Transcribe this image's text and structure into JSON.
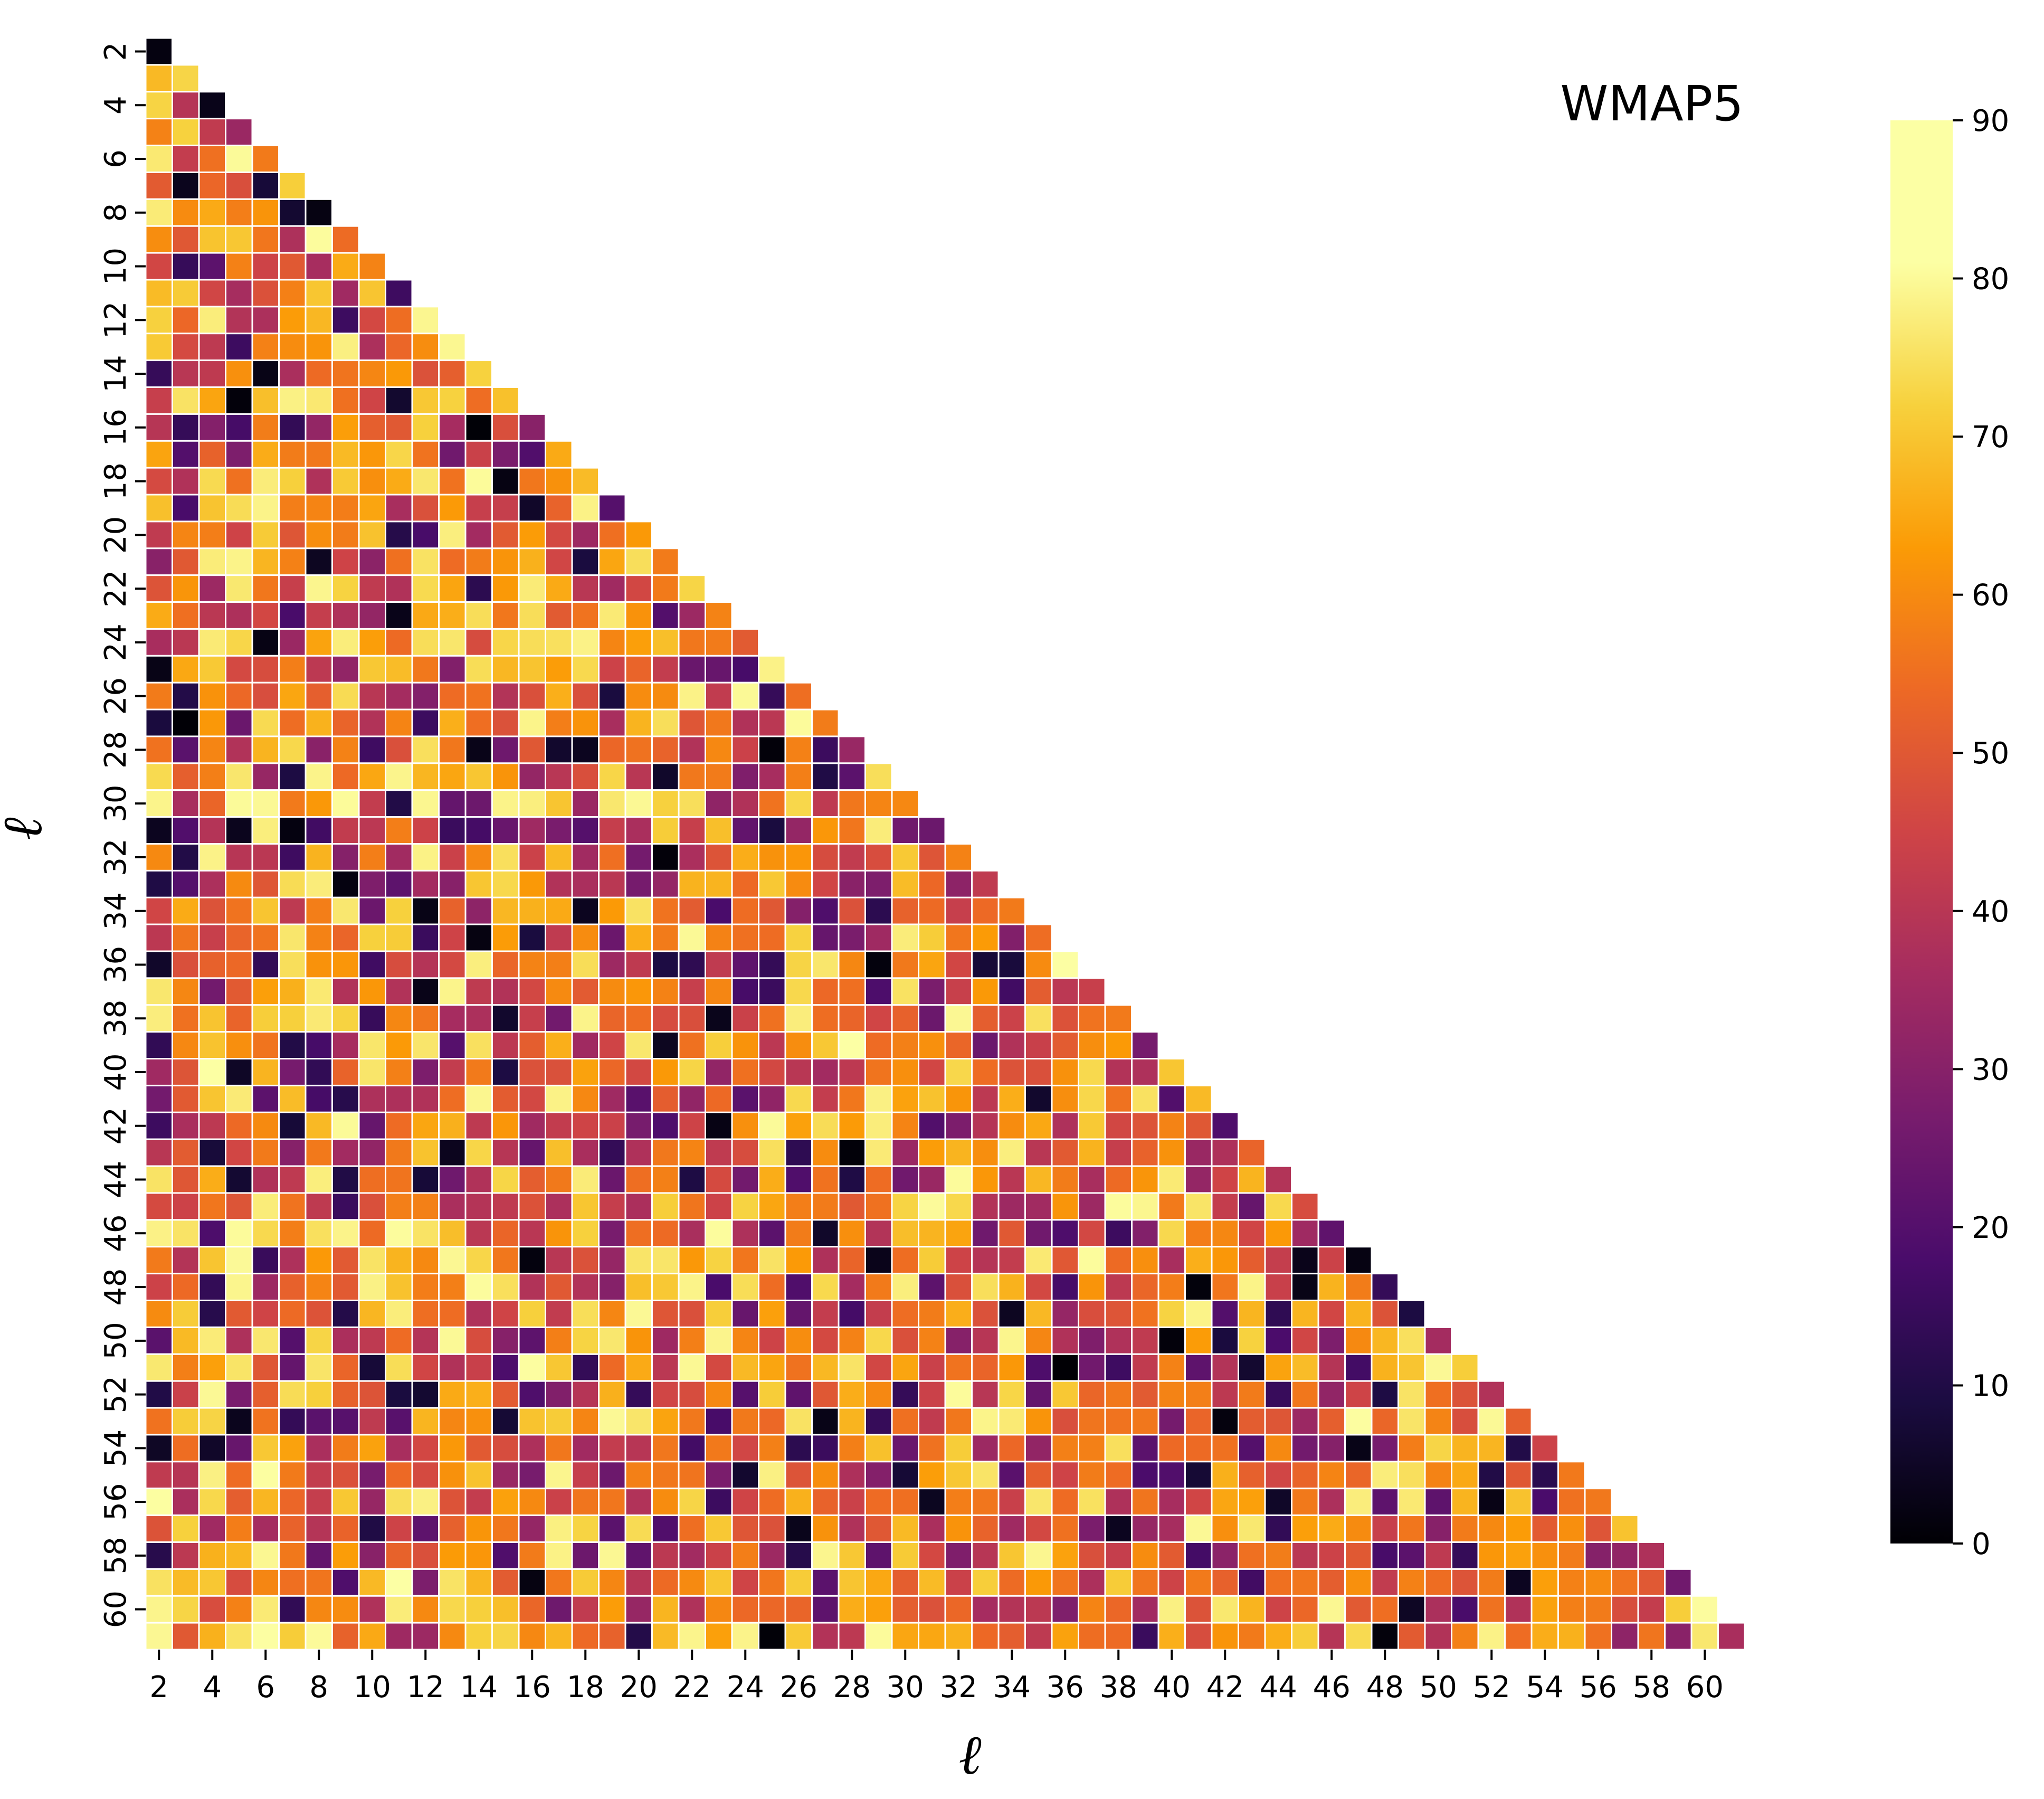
{
  "chart_data": {
    "type": "heatmap",
    "title": "",
    "annotation": "WMAP5",
    "xlabel": "ℓ",
    "ylabel": "ℓ",
    "multipole_range": [
      2,
      61
    ],
    "x_tick_labels": [
      "2",
      "4",
      "6",
      "8",
      "10",
      "12",
      "14",
      "16",
      "18",
      "20",
      "22",
      "24",
      "26",
      "28",
      "30",
      "32",
      "34",
      "36",
      "38",
      "40",
      "42",
      "44",
      "46",
      "48",
      "50",
      "52",
      "54",
      "56",
      "58",
      "60"
    ],
    "y_tick_labels": [
      "2",
      "4",
      "6",
      "8",
      "10",
      "12",
      "14",
      "16",
      "18",
      "20",
      "22",
      "24",
      "26",
      "28",
      "30",
      "32",
      "34",
      "36",
      "38",
      "40",
      "42",
      "44",
      "46",
      "48",
      "50",
      "52",
      "54",
      "56",
      "58",
      "60"
    ],
    "colorbar": {
      "vmin": 0,
      "vmax": 90,
      "colormap": "inferno",
      "tick_labels": [
        "0",
        "10",
        "20",
        "30",
        "40",
        "50",
        "60",
        "70",
        "80",
        "90"
      ]
    },
    "cell_layout": "lower-triangular",
    "cell_values_note": "Each cell (row ℓ, column ℓ') for ℓ' ≤ ℓ holds an angle in degrees (0–90) shown only by its color; values are approximate readings of the color scale."
  }
}
